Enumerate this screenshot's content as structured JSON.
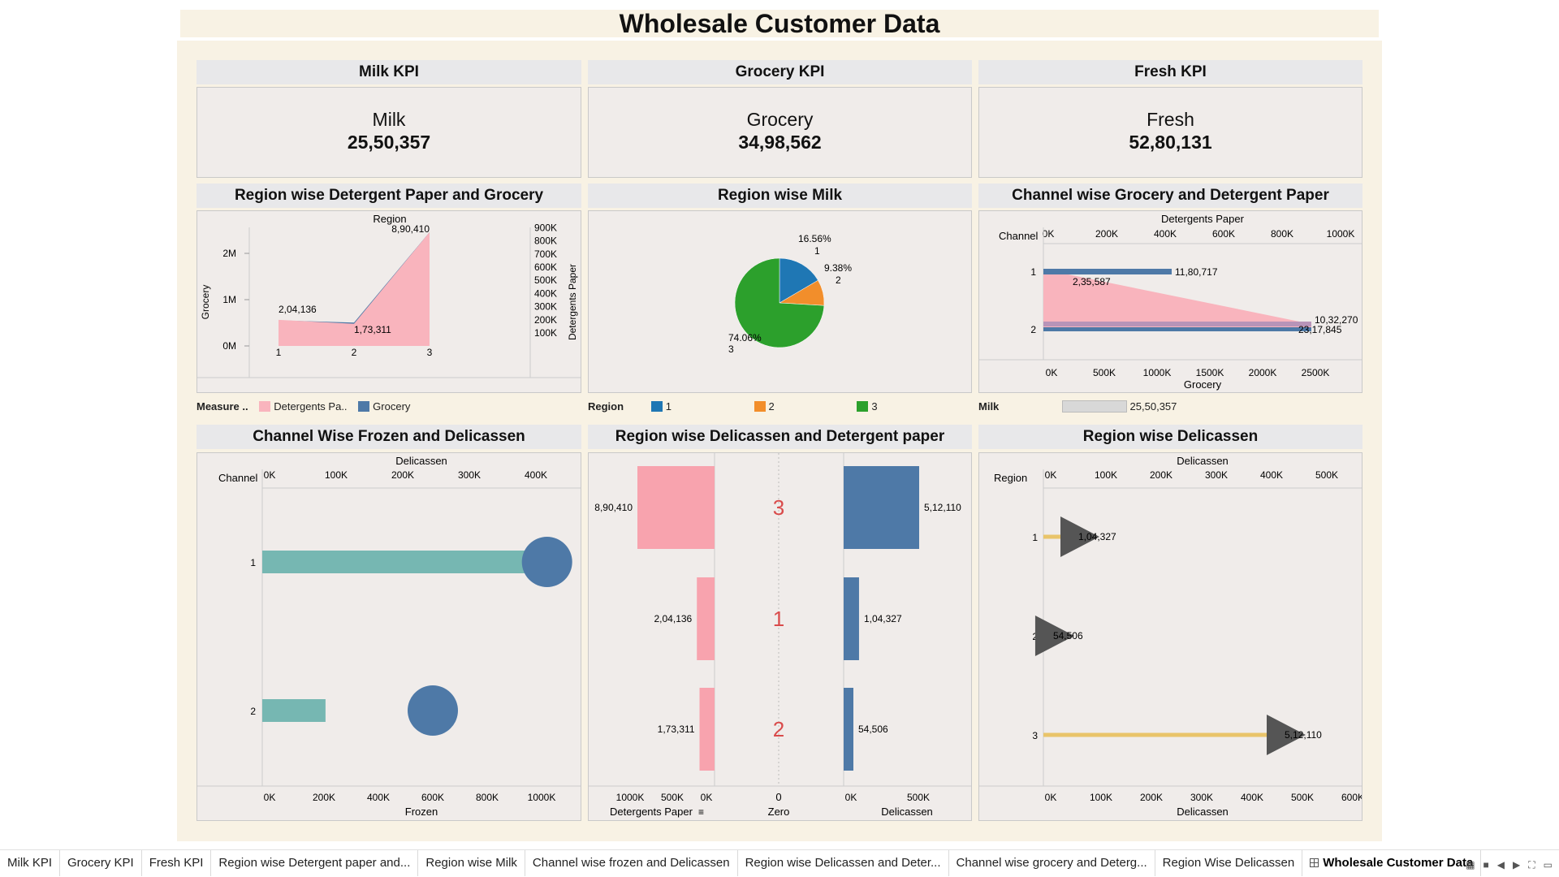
{
  "dashboard": {
    "title": "Wholesale Customer Data"
  },
  "kpis": [
    {
      "title": "Milk KPI",
      "label": "Milk",
      "value": "25,50,357"
    },
    {
      "title": "Grocery KPI",
      "label": "Grocery",
      "value": "34,98,562"
    },
    {
      "title": "Fresh KPI",
      "label": "Fresh",
      "value": "52,80,131"
    }
  ],
  "colors": {
    "pink": "#f9b4bd",
    "blue": "#4e79a7",
    "orange": "#f28e2b",
    "green": "#2ca02c",
    "region1": "#1f77b4",
    "teal": "#76b7b2",
    "gold": "#e9c46a",
    "triangle": "#555555"
  },
  "charts": {
    "c1": {
      "title": "Region wise Detergent Paper and Grocery",
      "chart_data": {
        "type": "area",
        "x": [
          "1",
          "2",
          "3"
        ],
        "xlabel": "Region",
        "ylabel_left": "Grocery",
        "ylabel_right": "Detergents Paper",
        "left_ticks": [
          "0M",
          "1M",
          "2M"
        ],
        "right_ticks": [
          "100K",
          "200K",
          "300K",
          "400K",
          "500K",
          "600K",
          "700K",
          "800K",
          "900K"
        ],
        "series": [
          {
            "name": "Detergents Pa..",
            "values": [
              204136,
              173311,
              890410
            ]
          },
          {
            "name": "Grocery",
            "values": [
              570000,
              520000,
              2530000
            ]
          }
        ],
        "labels": [
          "2,04,136",
          "1,73,311",
          "8,90,410"
        ],
        "legend_title": "Measure .."
      }
    },
    "c2": {
      "title": "Region wise Milk",
      "chart_data": {
        "type": "pie",
        "slices": [
          {
            "name": "1",
            "percent": 16.56,
            "pct_label": "16.56%"
          },
          {
            "name": "2",
            "percent": 9.38,
            "pct_label": "9.38%"
          },
          {
            "name": "3",
            "percent": 74.06,
            "pct_label": "74.06%"
          }
        ],
        "legend_title": "Region",
        "legend": [
          "1",
          "2",
          "3"
        ]
      }
    },
    "c3": {
      "title": "Channel wise Grocery and Detergent Paper",
      "chart_data": {
        "type": "bar",
        "categories": [
          "1",
          "2"
        ],
        "cat_label": "Channel",
        "top_axis_label": "Detergents Paper",
        "top_ticks": [
          "0K",
          "200K",
          "400K",
          "600K",
          "800K",
          "1000K"
        ],
        "bottom_axis_label": "Grocery",
        "bottom_ticks": [
          "0K",
          "500K",
          "1000K",
          "1500K",
          "2000K",
          "2500K"
        ],
        "series": [
          {
            "name": "Detergents Paper",
            "values": [
              235587,
              1032270
            ],
            "labels": [
              "2,35,587",
              "10,32,270"
            ]
          },
          {
            "name": "Grocery",
            "values": [
              1180717,
              2317845
            ],
            "labels": [
              "11,80,717",
              "23,17,845"
            ]
          }
        ],
        "legend_title": "Milk",
        "legend_value": "25,50,357"
      }
    },
    "c4": {
      "title": "Channel Wise Frozen and Delicassen",
      "chart_data": {
        "type": "bar",
        "categories": [
          "1",
          "2"
        ],
        "cat_label": "Channel",
        "top_axis_label": "Delicassen",
        "top_ticks": [
          "0K",
          "100K",
          "200K",
          "300K",
          "400K"
        ],
        "bottom_axis_label": "Frozen",
        "bottom_ticks": [
          "0K",
          "200K",
          "400K",
          "600K",
          "800K",
          "1000K"
        ],
        "series": [
          {
            "name": "Delicassen",
            "values": [
              460000,
              95000
            ]
          },
          {
            "name": "Frozen",
            "values": [
              1020000,
              600000
            ]
          }
        ]
      }
    },
    "c5": {
      "title": "Region wise Delicassen and Detergent paper",
      "chart_data": {
        "type": "bar",
        "categories": [
          "3",
          "1",
          "2"
        ],
        "left_axis_label": "Detergents Paper",
        "left_ticks": [
          "1000K",
          "500K",
          "0K"
        ],
        "mid_axis_label": "Zero",
        "mid_tick": "0",
        "right_axis_label": "Delicassen",
        "right_ticks": [
          "0K",
          "500K"
        ],
        "series": [
          {
            "name": "Detergents Paper",
            "values": [
              890410,
              204136,
              173311
            ],
            "labels": [
              "8,90,410",
              "2,04,136",
              "1,73,311"
            ]
          },
          {
            "name": "Delicassen",
            "values": [
              512110,
              104327,
              54506
            ],
            "labels": [
              "5,12,110",
              "1,04,327",
              "54,506"
            ]
          }
        ]
      }
    },
    "c6": {
      "title": "Region wise Delicassen",
      "chart_data": {
        "type": "bar",
        "categories": [
          "1",
          "2",
          "3"
        ],
        "cat_label": "Region",
        "top_axis_label": "Delicassen",
        "top_ticks": [
          "0K",
          "100K",
          "200K",
          "300K",
          "400K",
          "500K"
        ],
        "bottom_axis_label": "Delicassen",
        "bottom_ticks": [
          "0K",
          "100K",
          "200K",
          "300K",
          "400K",
          "500K",
          "600K"
        ],
        "series": [
          {
            "name": "Delicassen",
            "values": [
              104327,
              54506,
              512110
            ],
            "labels": [
              "1,04,327",
              "54,506",
              "5,12,110"
            ]
          }
        ]
      }
    }
  },
  "tabs": [
    {
      "label": "Milk KPI"
    },
    {
      "label": "Grocery KPI"
    },
    {
      "label": "Fresh KPI"
    },
    {
      "label": "Region wise Detergent paper and..."
    },
    {
      "label": "Region wise Milk"
    },
    {
      "label": "Channel wise frozen and Delicassen"
    },
    {
      "label": "Region wise Delicassen and Deter..."
    },
    {
      "label": "Channel wise grocery and Deterg..."
    },
    {
      "label": "Region Wise Delicassen"
    },
    {
      "label": "Wholesale Customer Data"
    }
  ]
}
